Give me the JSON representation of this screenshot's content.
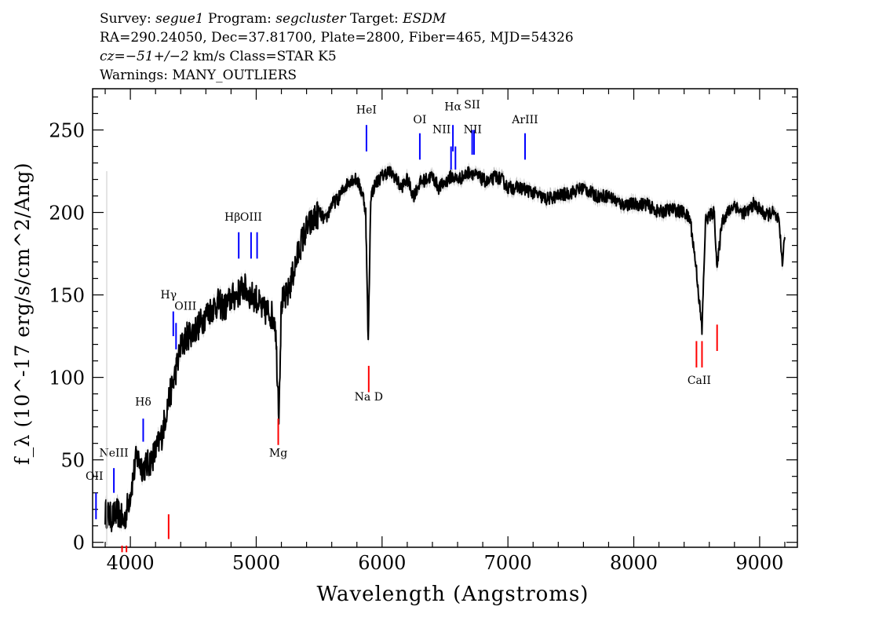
{
  "header": {
    "l1": {
      "k1": "Survey: ",
      "v1": "segue1",
      "k2": " Program: ",
      "v2": "segcluster",
      "k3": " Target: ",
      "v3": "ESDM"
    },
    "l2": "RA=290.24050, Dec=37.81700, Plate=2800, Fiber=465, MJD=54326",
    "l3": {
      "v": "cz=−51+/−2",
      "rest": " km/s Class=STAR K5"
    },
    "l4": "Warnings: MANY_OUTLIERS"
  },
  "chart_data": {
    "type": "line",
    "title": "",
    "xlabel": "Wavelength (Angstroms)",
    "ylabel": "f_λ (10^-17 erg/s/cm^2/Ang)",
    "xlim": [
      3700,
      9300
    ],
    "ylim": [
      -3,
      275
    ],
    "grid": false,
    "x_ticks": [
      4000,
      5000,
      6000,
      7000,
      8000,
      9000
    ],
    "x_tick_labels": [
      "4000",
      "5000",
      "6000",
      "7000",
      "8000",
      "9000"
    ],
    "y_ticks": [
      0,
      50,
      100,
      150,
      200,
      250
    ],
    "y_tick_labels": [
      "0",
      "50",
      "100",
      "150",
      "200",
      "250"
    ],
    "series": [
      {
        "x": [
          3800,
          3850,
          3900,
          3950,
          4000,
          4050,
          4100,
          4150,
          4200,
          4250,
          4300,
          4350,
          4400,
          4450,
          4500,
          4550,
          4600,
          4650,
          4700,
          4750,
          4800,
          4850,
          4900,
          4950,
          5000,
          5050,
          5100,
          5150,
          5180,
          5200,
          5250,
          5300,
          5350,
          5400,
          5450,
          5500,
          5550,
          5600,
          5650,
          5700,
          5750,
          5800,
          5850,
          5870,
          5890,
          5910,
          5950,
          6000,
          6050,
          6100,
          6150,
          6200,
          6250,
          6300,
          6350,
          6400,
          6450,
          6500,
          6550,
          6600,
          6650,
          6700,
          6750,
          6800,
          6850,
          6900,
          6950,
          7000,
          7100,
          7200,
          7300,
          7400,
          7500,
          7600,
          7700,
          7800,
          7900,
          8000,
          8100,
          8200,
          8300,
          8400,
          8450,
          8498,
          8542,
          8570,
          8600,
          8640,
          8662,
          8700,
          8750,
          8800,
          8850,
          8900,
          8950,
          9000,
          9050,
          9100,
          9150,
          9180,
          9200
        ],
        "y": [
          18,
          15,
          18,
          12,
          30,
          52,
          45,
          48,
          55,
          65,
          85,
          100,
          118,
          125,
          128,
          132,
          138,
          142,
          145,
          142,
          148,
          150,
          155,
          150,
          148,
          140,
          140,
          135,
          80,
          145,
          150,
          165,
          180,
          190,
          195,
          200,
          195,
          205,
          208,
          215,
          220,
          220,
          210,
          200,
          120,
          210,
          218,
          222,
          225,
          222,
          215,
          220,
          210,
          218,
          220,
          222,
          215,
          218,
          222,
          220,
          222,
          225,
          222,
          220,
          218,
          222,
          220,
          215,
          215,
          212,
          208,
          210,
          212,
          215,
          210,
          210,
          205,
          205,
          205,
          200,
          202,
          200,
          195,
          165,
          128,
          195,
          198,
          200,
          165,
          195,
          200,
          205,
          200,
          200,
          205,
          202,
          198,
          200,
          195,
          170,
          185
        ]
      }
    ],
    "emission_lines": [
      {
        "label": "OII",
        "wl": 3727
      },
      {
        "label": "NeIII",
        "wl": 3869
      },
      {
        "label": "Hδ",
        "wl": 4102
      },
      {
        "label": "Hγ",
        "wl": 4341
      },
      {
        "label": "OIII",
        "wl": 4363
      },
      {
        "label": "Hβ",
        "wl": 4861
      },
      {
        "label": "OIII",
        "wl": 4959
      },
      {
        "label": "OIII",
        "wl": 5007
      },
      {
        "label": "HeI",
        "wl": 5876
      },
      {
        "label": "OI",
        "wl": 6300
      },
      {
        "label": "NII",
        "wl": 6548
      },
      {
        "label": "Hα",
        "wl": 6563
      },
      {
        "label": "NII",
        "wl": 6583
      },
      {
        "label": "SII",
        "wl": 6716
      },
      {
        "label": "SII",
        "wl": 6731
      },
      {
        "label": "ArIII",
        "wl": 7136
      }
    ],
    "absorption_lines": [
      {
        "label": "",
        "wl": 3934
      },
      {
        "label": "",
        "wl": 3969
      },
      {
        "label": "",
        "wl": 4304
      },
      {
        "label": "Mg",
        "wl": 5175
      },
      {
        "label": "Na D",
        "wl": 5894
      },
      {
        "label": "CaII",
        "wl": 8498
      },
      {
        "label": "",
        "wl": 8542
      },
      {
        "label": "",
        "wl": 8662
      }
    ],
    "colors": {
      "emission": "#0000ff",
      "absorption": "#ff0000",
      "spectrum": "#000000",
      "error_band": "#b0b0b0"
    }
  }
}
